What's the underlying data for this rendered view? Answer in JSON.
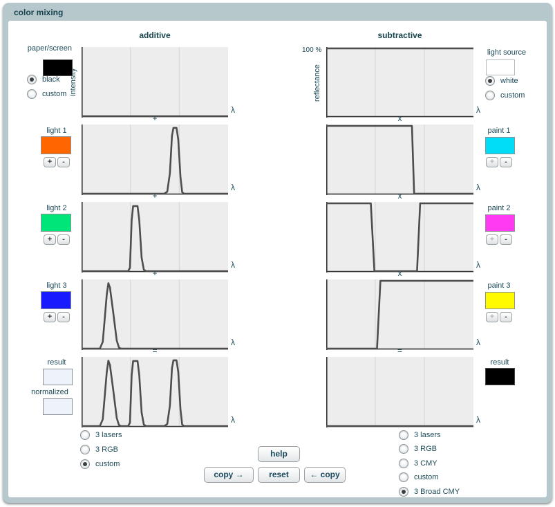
{
  "window_title": "color mixing",
  "chart_meta": {
    "x_axis_label": "λ",
    "y_max_label": "100 %"
  },
  "colors": {
    "frame": "#b6c8cc",
    "title_text": "#17454e",
    "label_text": "#1c4a58",
    "chart_bg": "#ededed",
    "grid": "#d9d9d9",
    "curve": "#4d4d4d",
    "axis": "#333333"
  },
  "additive": {
    "header": "additive",
    "y_axis_label": "intensity",
    "operators": [
      "+",
      "+",
      "+",
      "="
    ],
    "source": {
      "label": "paper/screen",
      "swatch": "#000000",
      "radios": [
        {
          "label": "black",
          "selected": true
        },
        {
          "label": "custom",
          "selected": false
        }
      ]
    },
    "lights": [
      {
        "label": "light 1",
        "swatch": "#ff6600"
      },
      {
        "label": "light 2",
        "swatch": "#00e57a"
      },
      {
        "label": "light 3",
        "swatch": "#1a1aff"
      }
    ],
    "result": {
      "label": "result",
      "swatch": "#eef2fa",
      "label2": "normalized",
      "swatch2": "#eef2fa"
    },
    "presets": [
      {
        "label": "3 lasers",
        "selected": false
      },
      {
        "label": "3 RGB",
        "selected": false
      },
      {
        "label": "custom",
        "selected": true
      }
    ]
  },
  "subtractive": {
    "header": "subtractive",
    "y_axis_label": "reflectance",
    "operators": [
      "x",
      "x",
      "x",
      "="
    ],
    "source": {
      "label": "light source",
      "swatch": "#ffffff",
      "radios": [
        {
          "label": "white",
          "selected": true
        },
        {
          "label": "custom",
          "selected": false
        }
      ]
    },
    "paints": [
      {
        "label": "paint 1",
        "swatch": "#00ddf5"
      },
      {
        "label": "paint 2",
        "swatch": "#ff3af0"
      },
      {
        "label": "paint 3",
        "swatch": "#fffa00"
      }
    ],
    "result": {
      "label": "result",
      "swatch": "#000000"
    },
    "presets": [
      {
        "label": "3 lasers",
        "selected": false
      },
      {
        "label": "3 RGB",
        "selected": false
      },
      {
        "label": "3 CMY",
        "selected": false
      },
      {
        "label": "custom",
        "selected": false
      },
      {
        "label": "3 Broad CMY",
        "selected": true
      }
    ]
  },
  "buttons": {
    "help": "help",
    "copy_right": "copy →",
    "reset": "reset",
    "copy_left": "← copy"
  },
  "steppers": {
    "plus": "+",
    "minus": "-"
  },
  "chart_data": {
    "type": "line",
    "x_axis": "wavelength λ, gridlines at 1/3 and 2/3 of range",
    "y_range": [
      0,
      1
    ],
    "additive_curves": {
      "paper_screen": [
        [
          0,
          0
        ],
        [
          1,
          0
        ]
      ],
      "light_1": [
        [
          0,
          0
        ],
        [
          0.565,
          0
        ],
        [
          0.585,
          0.03
        ],
        [
          0.603,
          0.3
        ],
        [
          0.617,
          0.85
        ],
        [
          0.627,
          0.97
        ],
        [
          0.648,
          0.97
        ],
        [
          0.66,
          0.8
        ],
        [
          0.675,
          0.25
        ],
        [
          0.687,
          0.02
        ],
        [
          0.7,
          0
        ],
        [
          1,
          0
        ]
      ],
      "light_2": [
        [
          0,
          0
        ],
        [
          0.318,
          0
        ],
        [
          0.33,
          0.05
        ],
        [
          0.342,
          0.75
        ],
        [
          0.352,
          0.96
        ],
        [
          0.382,
          0.96
        ],
        [
          0.394,
          0.75
        ],
        [
          0.41,
          0.2
        ],
        [
          0.425,
          0.02
        ],
        [
          0.44,
          0
        ],
        [
          1,
          0
        ]
      ],
      "light_3": [
        [
          0,
          0
        ],
        [
          0.125,
          0
        ],
        [
          0.145,
          0.1
        ],
        [
          0.172,
          0.8
        ],
        [
          0.183,
          0.965
        ],
        [
          0.194,
          0.9
        ],
        [
          0.215,
          0.55
        ],
        [
          0.24,
          0.12
        ],
        [
          0.255,
          0.015
        ],
        [
          0.27,
          0
        ],
        [
          1,
          0
        ]
      ],
      "result": [
        [
          0,
          0
        ],
        [
          0.125,
          0
        ],
        [
          0.145,
          0.1
        ],
        [
          0.172,
          0.8
        ],
        [
          0.183,
          0.965
        ],
        [
          0.194,
          0.9
        ],
        [
          0.215,
          0.55
        ],
        [
          0.24,
          0.12
        ],
        [
          0.255,
          0.015
        ],
        [
          0.27,
          0
        ],
        [
          0.318,
          0
        ],
        [
          0.33,
          0.05
        ],
        [
          0.342,
          0.75
        ],
        [
          0.352,
          0.96
        ],
        [
          0.382,
          0.96
        ],
        [
          0.394,
          0.75
        ],
        [
          0.41,
          0.2
        ],
        [
          0.425,
          0.02
        ],
        [
          0.44,
          0
        ],
        [
          0.565,
          0
        ],
        [
          0.585,
          0.03
        ],
        [
          0.603,
          0.3
        ],
        [
          0.617,
          0.85
        ],
        [
          0.627,
          0.97
        ],
        [
          0.648,
          0.97
        ],
        [
          0.66,
          0.8
        ],
        [
          0.675,
          0.25
        ],
        [
          0.687,
          0.02
        ],
        [
          0.7,
          0
        ],
        [
          1,
          0
        ]
      ]
    },
    "subtractive_curves": {
      "light_source": [
        [
          0,
          1
        ],
        [
          1,
          1
        ]
      ],
      "paint_1": [
        [
          0,
          1
        ],
        [
          0.582,
          1
        ],
        [
          0.597,
          0
        ],
        [
          1,
          0
        ]
      ],
      "paint_2": [
        [
          0,
          1
        ],
        [
          0.303,
          1
        ],
        [
          0.327,
          0
        ],
        [
          0.617,
          0
        ],
        [
          0.638,
          1
        ],
        [
          1,
          1
        ]
      ],
      "paint_3": [
        [
          0,
          0
        ],
        [
          0.345,
          0
        ],
        [
          0.368,
          1
        ],
        [
          1,
          1
        ]
      ],
      "result": [
        [
          0,
          0
        ],
        [
          1,
          0
        ]
      ]
    }
  }
}
